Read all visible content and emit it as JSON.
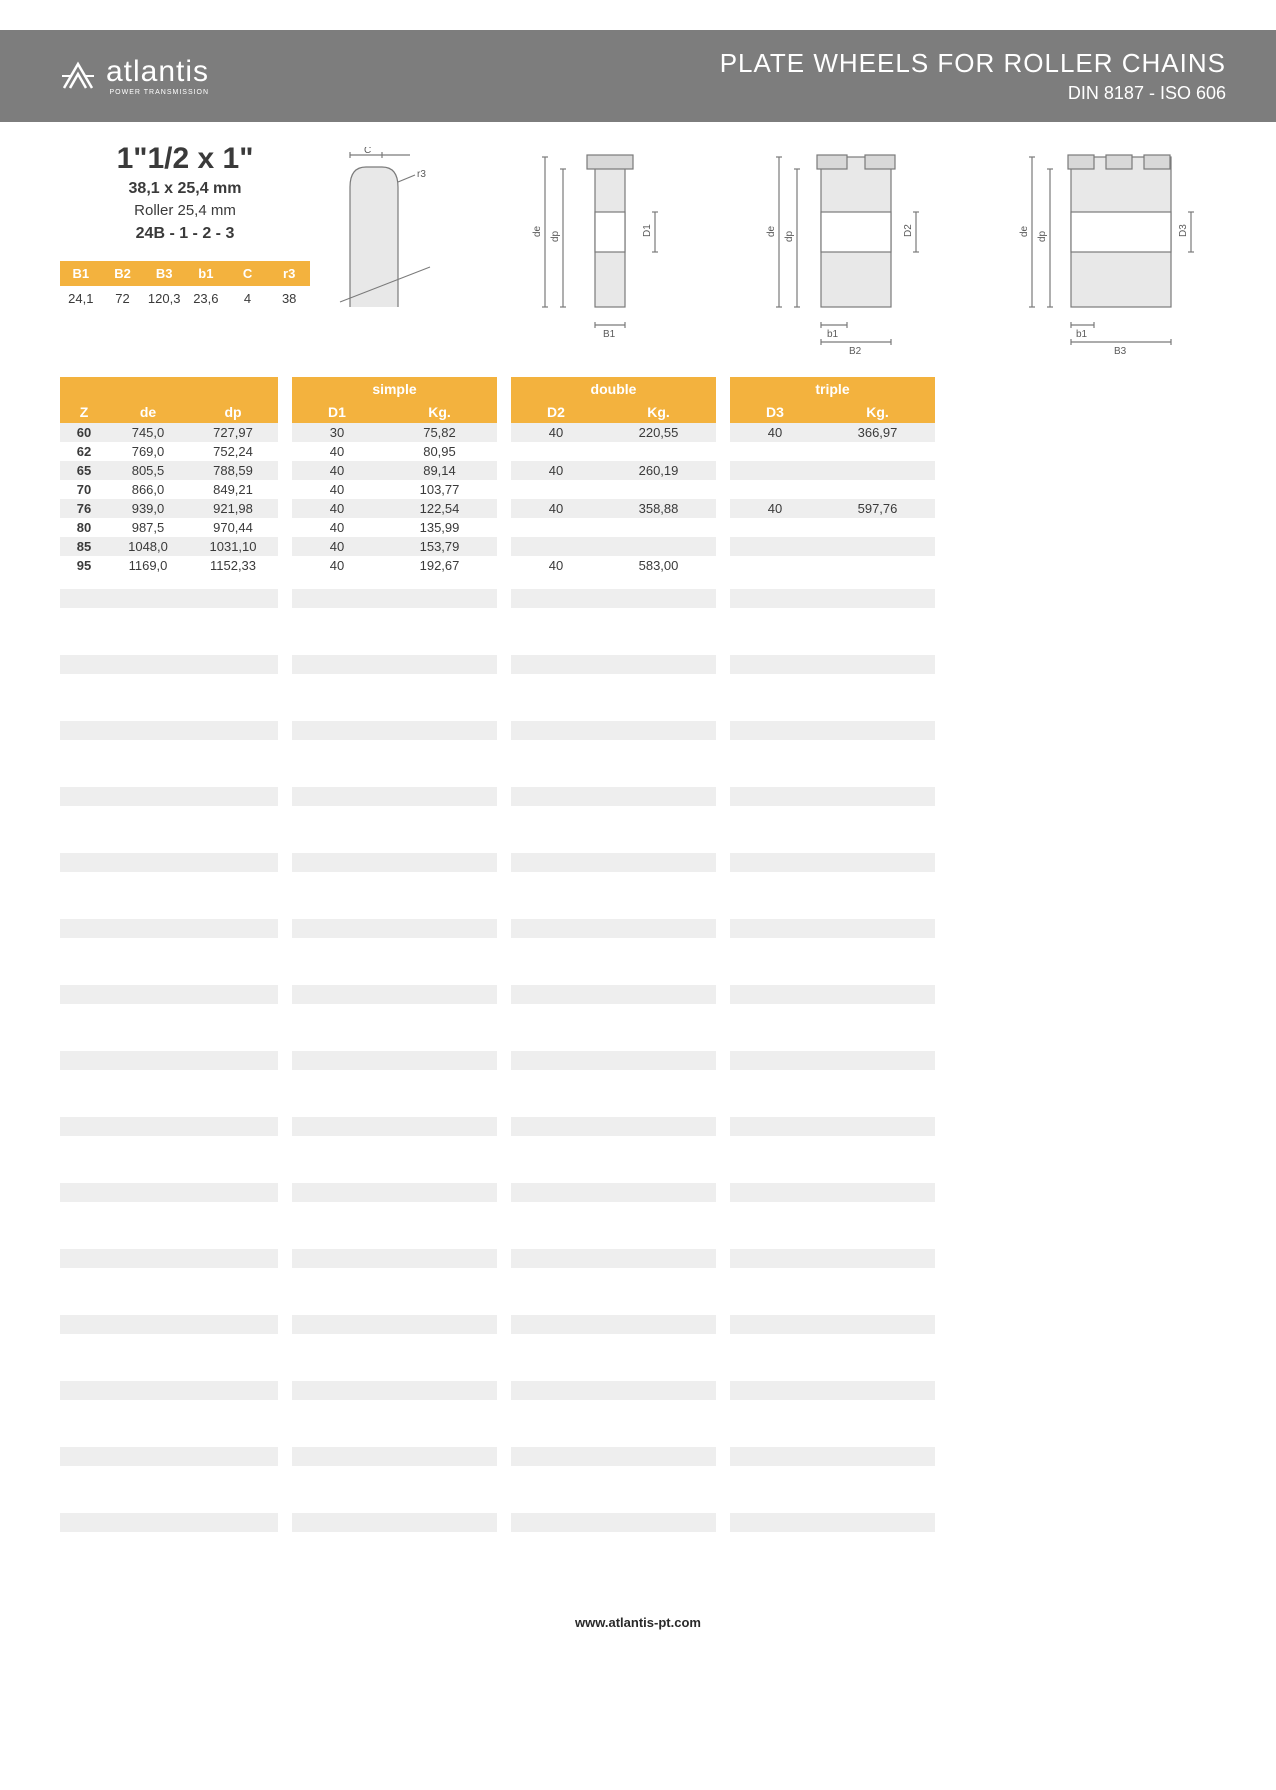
{
  "header": {
    "logo_name": "atlantis",
    "logo_sub": "POWER TRANSMISSION",
    "title": "PLATE WHEELS FOR ROLLER CHAINS",
    "subtitle": "DIN 8187 - ISO 606"
  },
  "spec": {
    "main": "1\"1/2 x 1\"",
    "mm": "38,1 x 25,4 mm",
    "roller": "Roller 25,4 mm",
    "code": "24B - 1 - 2 - 3"
  },
  "mini": {
    "headers": [
      "B1",
      "B2",
      "B3",
      "b1",
      "C",
      "r3"
    ],
    "values": [
      "24,1",
      "72",
      "120,3",
      "23,6",
      "4",
      "38"
    ]
  },
  "diagram_labels": {
    "c": "C",
    "r3": "r3",
    "de": "de",
    "dp": "dp",
    "d1": "D1",
    "b1": "B1",
    "d2": "D2",
    "b1s": "b1",
    "b2": "B2",
    "d3": "D3",
    "b3": "B3"
  },
  "table": {
    "group_labels": {
      "simple": "simple",
      "double": "double",
      "triple": "triple"
    },
    "col_labels": {
      "z": "Z",
      "de": "de",
      "dp": "dp",
      "d1": "D1",
      "d2": "D2",
      "d3": "D3",
      "kg": "Kg."
    },
    "rows": [
      {
        "z": "60",
        "de": "745,0",
        "dp": "727,97",
        "d1": "30",
        "kg1": "75,82",
        "d2": "40",
        "kg2": "220,55",
        "d3": "40",
        "kg3": "366,97"
      },
      {
        "z": "62",
        "de": "769,0",
        "dp": "752,24",
        "d1": "40",
        "kg1": "80,95",
        "d2": "",
        "kg2": "",
        "d3": "",
        "kg3": ""
      },
      {
        "z": "65",
        "de": "805,5",
        "dp": "788,59",
        "d1": "40",
        "kg1": "89,14",
        "d2": "40",
        "kg2": "260,19",
        "d3": "",
        "kg3": ""
      },
      {
        "z": "70",
        "de": "866,0",
        "dp": "849,21",
        "d1": "40",
        "kg1": "103,77",
        "d2": "",
        "kg2": "",
        "d3": "",
        "kg3": ""
      },
      {
        "z": "76",
        "de": "939,0",
        "dp": "921,98",
        "d1": "40",
        "kg1": "122,54",
        "d2": "40",
        "kg2": "358,88",
        "d3": "40",
        "kg3": "597,76"
      },
      {
        "z": "80",
        "de": "987,5",
        "dp": "970,44",
        "d1": "40",
        "kg1": "135,99",
        "d2": "",
        "kg2": "",
        "d3": "",
        "kg3": ""
      },
      {
        "z": "85",
        "de": "1048,0",
        "dp": "1031,10",
        "d1": "40",
        "kg1": "153,79",
        "d2": "",
        "kg2": "",
        "d3": "",
        "kg3": ""
      },
      {
        "z": "95",
        "de": "1169,0",
        "dp": "1152,33",
        "d1": "40",
        "kg1": "192,67",
        "d2": "40",
        "kg2": "583,00",
        "d3": "",
        "kg3": ""
      }
    ],
    "empty_rows": 30
  },
  "footer": "www.atlantis-pt.com",
  "colors": {
    "header_bg": "#7d7d7d",
    "accent": "#f3b23e",
    "row_alt": "#eeeeee",
    "text": "#3a3a3a",
    "diagram_stroke": "#7a7a7a"
  }
}
